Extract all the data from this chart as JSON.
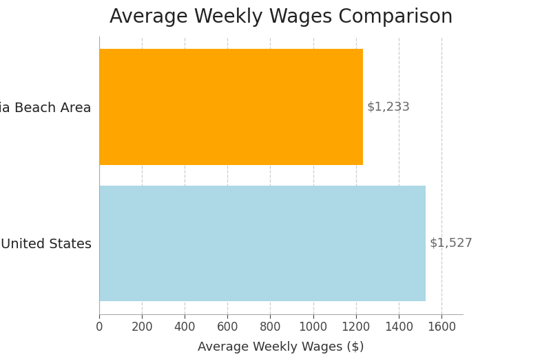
{
  "title": "Average Weekly Wages Comparison",
  "categories": [
    "United States",
    "Virginia Beach Area"
  ],
  "values": [
    1527,
    1233
  ],
  "bar_colors": [
    "#add8e6",
    "#FFA500"
  ],
  "xlabel": "Average Weekly Wages ($)",
  "xlim": [
    0,
    1700
  ],
  "xticks": [
    0,
    200,
    400,
    600,
    800,
    1000,
    1200,
    1400,
    1600
  ],
  "bar_height": 0.85,
  "annotations": [
    "$1,527",
    "$1,233"
  ],
  "annotation_color": "#666666",
  "grid_color": "#cccccc",
  "title_fontsize": 20,
  "label_fontsize": 13,
  "tick_fontsize": 12,
  "annotation_fontsize": 13,
  "background_color": "#ffffff",
  "bar_edge_color": "none"
}
